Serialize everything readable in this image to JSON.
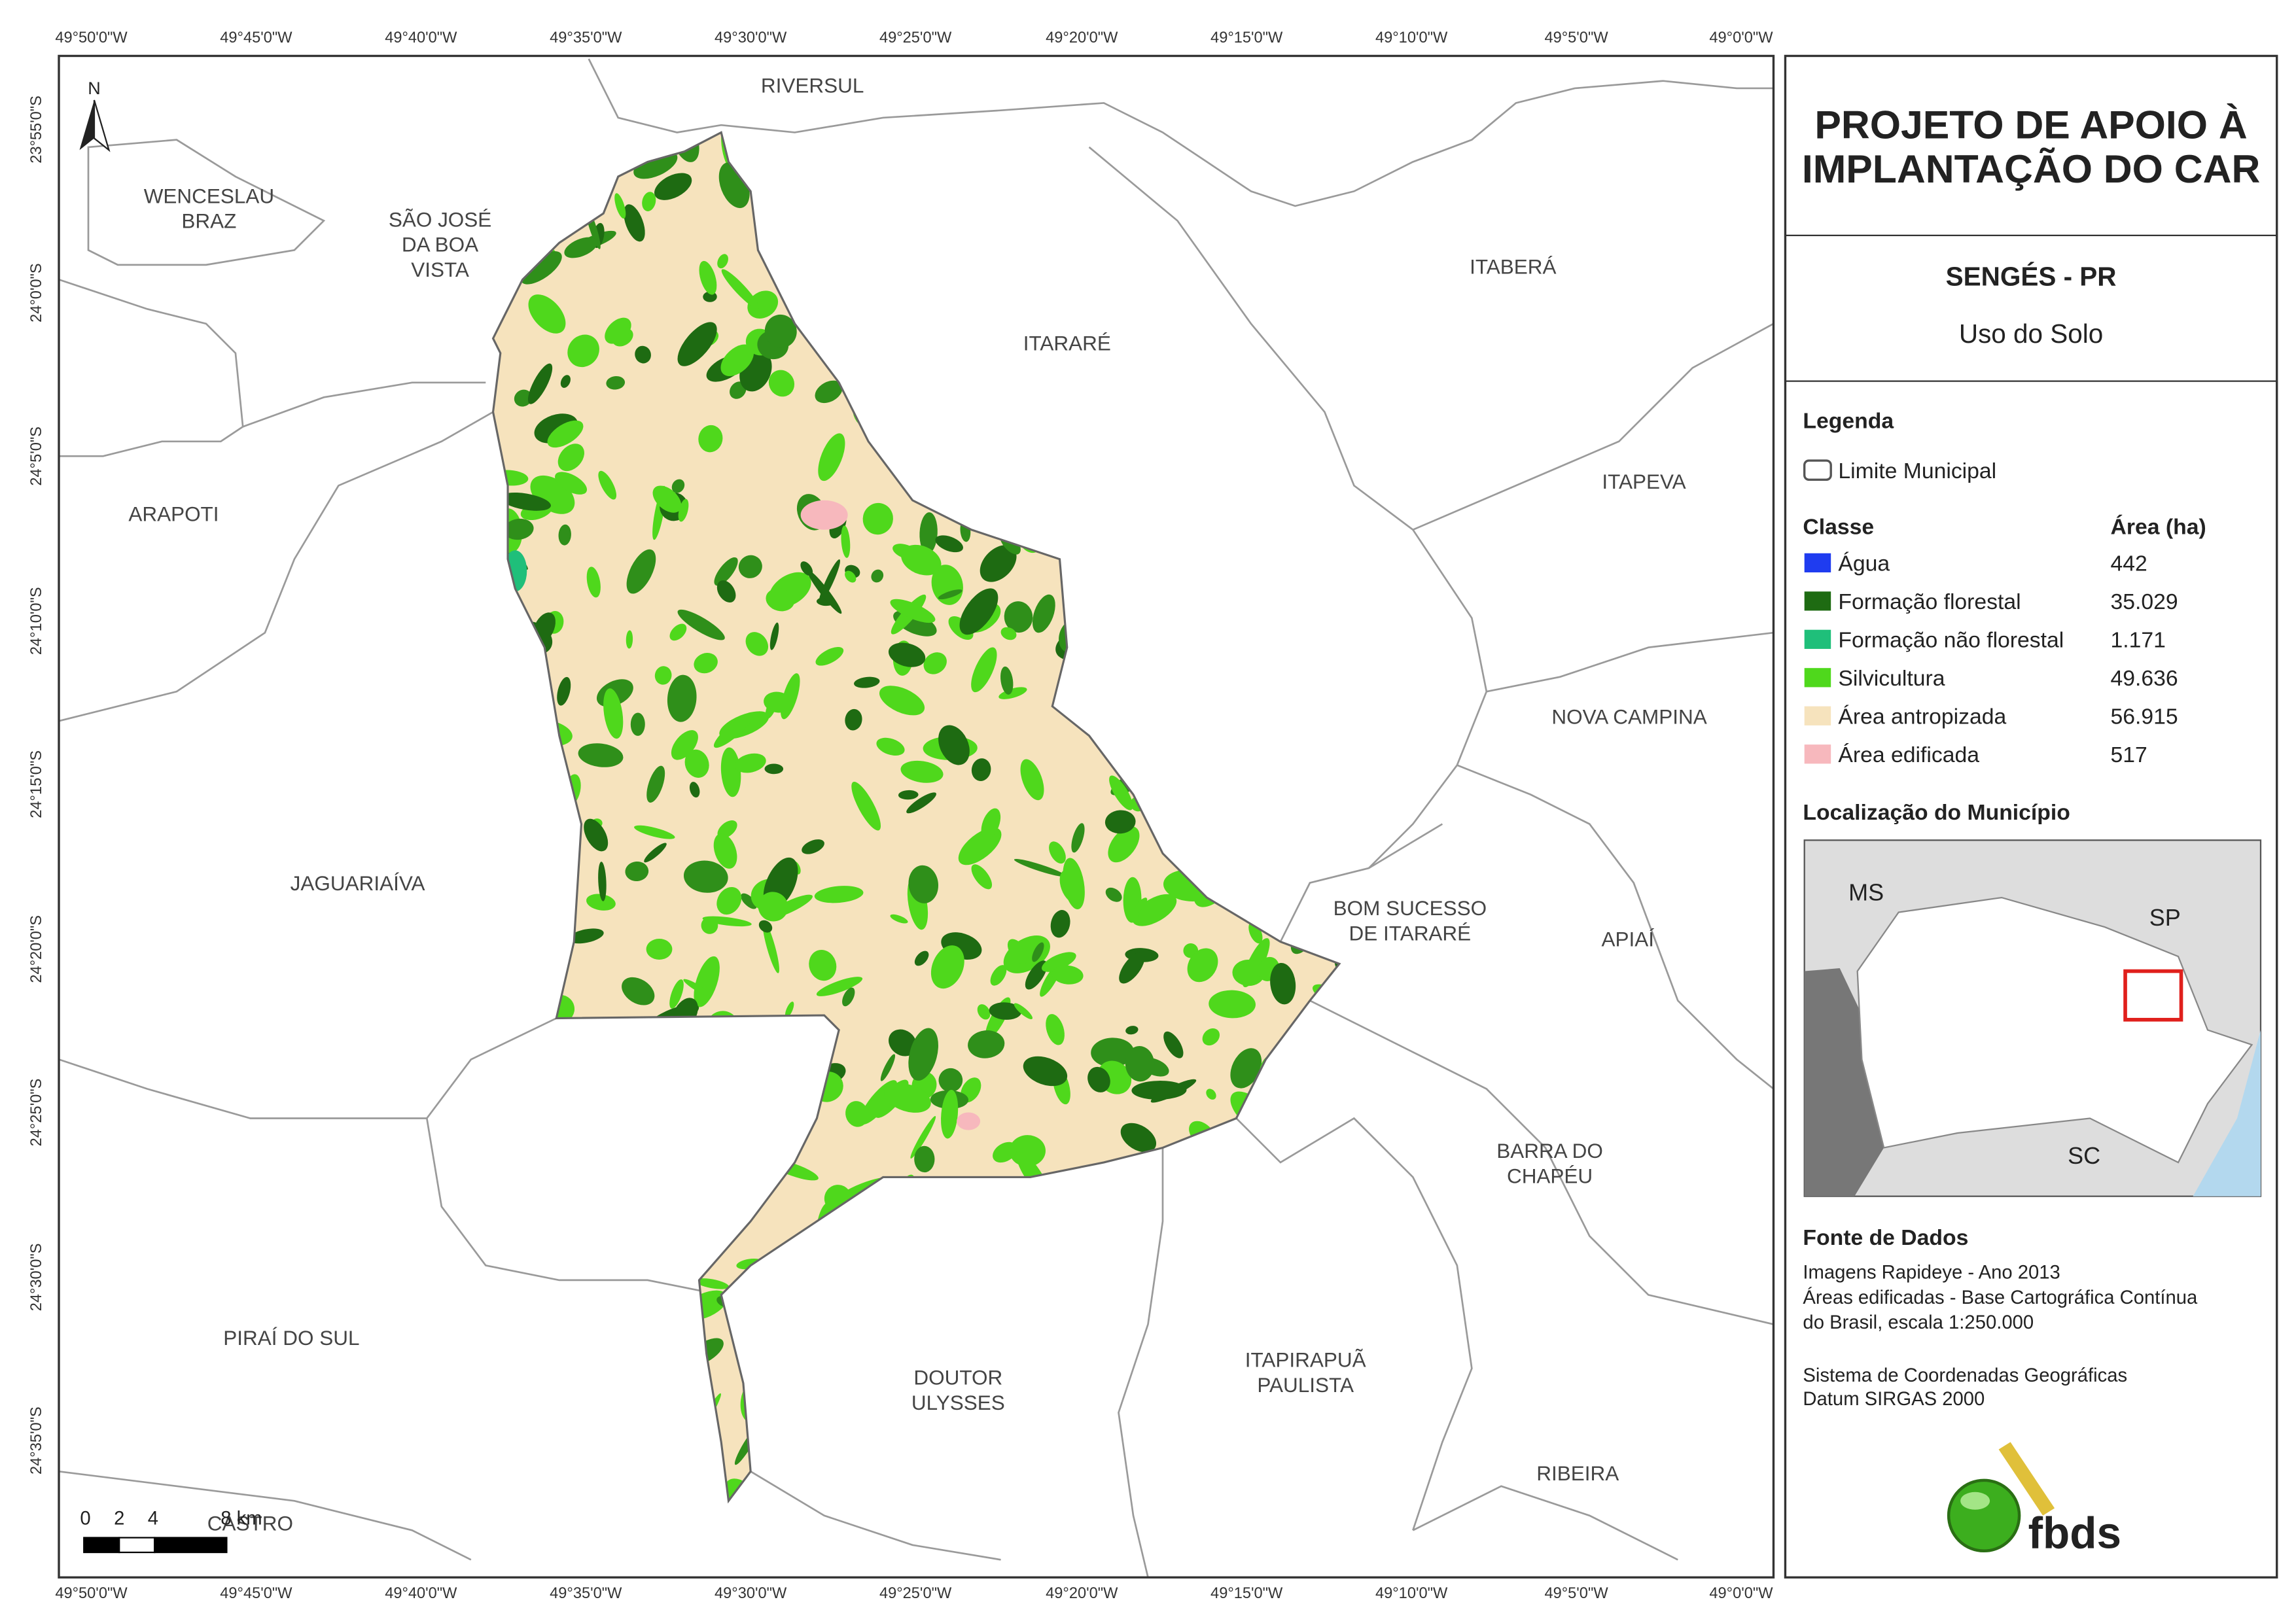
{
  "map": {
    "x_labels": [
      "49°50'0\"W",
      "49°45'0\"W",
      "49°40'0\"W",
      "49°35'0\"W",
      "49°30'0\"W",
      "49°25'0\"W",
      "49°20'0\"W",
      "49°15'0\"W",
      "49°10'0\"W",
      "49°5'0\"W",
      "49°0'0\"W"
    ],
    "y_labels": [
      "23°55'0\"S",
      "24°0'0\"S",
      "24°5'0\"S",
      "24°10'0\"S",
      "24°15'0\"S",
      "24°20'0\"S",
      "24°25'0\"S",
      "24°30'0\"S",
      "24°35'0\"S"
    ],
    "north": "N",
    "municipalities": [
      {
        "lines": [
          "RIVERSUL"
        ]
      },
      {
        "lines": [
          "WENCESLAU",
          "BRAZ"
        ]
      },
      {
        "lines": [
          "SÃO JOSÉ",
          "DA BOA",
          "VISTA"
        ]
      },
      {
        "lines": [
          "ITABERÁ"
        ]
      },
      {
        "lines": [
          "ITARARÉ"
        ]
      },
      {
        "lines": [
          "ITAPEVA"
        ]
      },
      {
        "lines": [
          "ARAPOTI"
        ]
      },
      {
        "lines": [
          "NOVA CAMPINA"
        ]
      },
      {
        "lines": [
          "JAGUARIAÍVA"
        ]
      },
      {
        "lines": [
          "BOM SUCESSO",
          "DE ITARARÉ"
        ]
      },
      {
        "lines": [
          "APIAÍ"
        ]
      },
      {
        "lines": [
          "BARRA DO",
          "CHAPÉU"
        ]
      },
      {
        "lines": [
          "PIRAÍ DO SUL"
        ]
      },
      {
        "lines": [
          "DOUTOR",
          "ULYSSES"
        ]
      },
      {
        "lines": [
          "ITAPIRAPUÃ",
          "PAULISTA"
        ]
      },
      {
        "lines": [
          "RIBEIRA"
        ]
      },
      {
        "lines": [
          "CASTRO"
        ]
      }
    ],
    "scale_bar": [
      "0",
      "2",
      "4",
      "8 km"
    ]
  },
  "panel": {
    "title": [
      "PROJETO DE APOIO À",
      "IMPLANTAÇÃO DO CAR"
    ],
    "subtitle": "SENGÉS - PR",
    "theme": "Uso do Solo",
    "legend": {
      "heading": "Legenda",
      "boundary": "Limite Municipal",
      "class_header": "Classe",
      "area_header": "Área (ha)",
      "rows": [
        {
          "label": "Água",
          "area": "442",
          "color": "#1f3cf0"
        },
        {
          "label": "Formação florestal",
          "area": "35.029",
          "color": "#1e6b12"
        },
        {
          "label": "Formação não florestal",
          "area": "1.171",
          "color": "#1fbf7a"
        },
        {
          "label": "Silvicultura",
          "area": "49.636",
          "color": "#4fd81c"
        },
        {
          "label": "Área antropizada",
          "area": "56.915",
          "color": "#f6e3bd"
        },
        {
          "label": "Área edificada",
          "area": "517",
          "color": "#f7b8bd"
        }
      ]
    },
    "location": {
      "heading": "Localização do Município",
      "labels": [
        "MS",
        "SP",
        "SC"
      ]
    },
    "sources": {
      "heading": "Fonte de Dados",
      "lines": [
        "Imagens Rapideye - Ano 2013",
        "Áreas edificadas - Base Cartográfica Contínua",
        "do Brasil, escala 1:250.000",
        "Sistema de Coordenadas Geográficas",
        "Datum SIRGAS 2000"
      ]
    },
    "logo": "fbds"
  }
}
